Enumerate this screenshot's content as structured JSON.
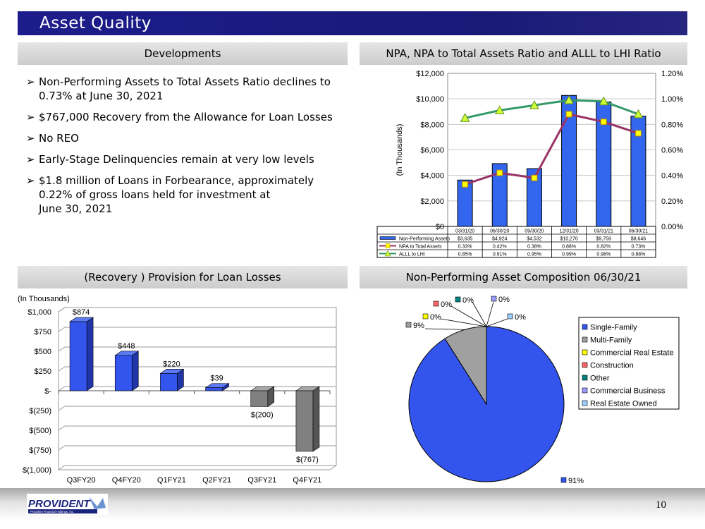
{
  "title": "Asset Quality",
  "page_number": "10",
  "logo": {
    "name": "PROVIDENT",
    "subtitle": "Provident Financial Holdings, Inc."
  },
  "sections": {
    "developments": {
      "header": "Developments",
      "bullets": [
        [
          "Non-Performing Assets to Total Assets Ratio declines to",
          "0.73% at June 30, 2021"
        ],
        [
          "$767,000 Recovery from the Allowance for Loan Losses"
        ],
        [
          "No REO"
        ],
        [
          "Early-Stage Delinquencies remain at very low levels"
        ],
        [
          "$1.8 million of Loans in Forbearance, approximately",
          "0.22% of gross loans held for investment at",
          "June 30, 2021"
        ]
      ]
    },
    "npa_chart": {
      "header": "NPA, NPA to Total Assets Ratio and ALLL to LHI Ratio"
    },
    "provision_chart": {
      "header": "(Recovery ) Provision for Loan Losses"
    },
    "composition_chart": {
      "header": "Non-Performing Asset Composition 06/30/21"
    }
  },
  "chart_data": [
    {
      "type": "bar",
      "combo": "bar-line",
      "ylabel": "(In Thousands)",
      "categories": [
        "03/31/20",
        "06/30/20",
        "09/30/20",
        "12/31/20",
        "03/31/21",
        "06/30/21"
      ],
      "ylim": [
        0,
        12000
      ],
      "yticks": [
        "$0",
        "$2,000",
        "$4,000",
        "$6,000",
        "$8,000",
        "$10,000",
        "$12,000"
      ],
      "y2lim": [
        0,
        1.2
      ],
      "y2ticks": [
        "0.00%",
        "0.20%",
        "0.40%",
        "0.60%",
        "0.80%",
        "1.00%",
        "1.20%"
      ],
      "grid": true,
      "series": [
        {
          "name": "Non-Performing Assets",
          "kind": "bar",
          "axis": "left",
          "color": "#3366ee",
          "values": [
            3635,
            4924,
            4532,
            10270,
            9759,
            8646
          ],
          "labels": [
            "$3,635",
            "$4,924",
            "$4,532",
            "$10,270",
            "$9,759",
            "$8,646"
          ]
        },
        {
          "name": "NPA to Total Assets",
          "kind": "line",
          "axis": "right",
          "color": "#993366",
          "marker": "square",
          "marker_color": "#ffff00",
          "values": [
            0.33,
            0.42,
            0.38,
            0.88,
            0.82,
            0.73
          ],
          "labels": [
            "0.33%",
            "0.42%",
            "0.38%",
            "0.88%",
            "0.82%",
            "0.73%"
          ]
        },
        {
          "name": "ALLL to LHI",
          "kind": "line",
          "axis": "right",
          "color": "#339966",
          "marker": "triangle",
          "marker_color": "#ccff33",
          "values": [
            0.85,
            0.91,
            0.95,
            0.99,
            0.98,
            0.88
          ],
          "labels": [
            "0.85%",
            "0.91%",
            "0.95%",
            "0.99%",
            "0.98%",
            "0.88%"
          ]
        }
      ]
    },
    {
      "type": "bar",
      "ylabel": "(In Thousands)",
      "categories": [
        "Q3FY20",
        "Q4FY20",
        "Q1FY21",
        "Q2FY21",
        "Q3FY21",
        "Q4FY21"
      ],
      "ylim": [
        -1000,
        1000
      ],
      "yticks": [
        "$(1,000)",
        "$(750)",
        "$(500)",
        "$(250)",
        "$-",
        "$250",
        "$500",
        "$750",
        "$1,000"
      ],
      "values": [
        874,
        448,
        220,
        39,
        -200,
        -767
      ],
      "labels": [
        "$874",
        "$448",
        "$220",
        "$39",
        "$(200)",
        "$(767)"
      ],
      "positive_color": "#3355ee",
      "negative_color": "#808080",
      "grid": true
    },
    {
      "type": "pie",
      "legend": "right",
      "categories": [
        "Single-Family",
        "Multi-Family",
        "Commercial Real Estate",
        "Construction",
        "Other",
        "Commercial Business",
        "Real Estate Owned"
      ],
      "values": [
        91,
        9,
        0,
        0,
        0,
        0,
        0
      ],
      "labels": [
        "91%",
        "9%",
        "0%",
        "0%",
        "0%",
        "0%",
        "0%"
      ],
      "colors": [
        "#3355ee",
        "#a0a0a0",
        "#ffff00",
        "#ff6666",
        "#008080",
        "#9999ff",
        "#99ccff"
      ]
    }
  ]
}
